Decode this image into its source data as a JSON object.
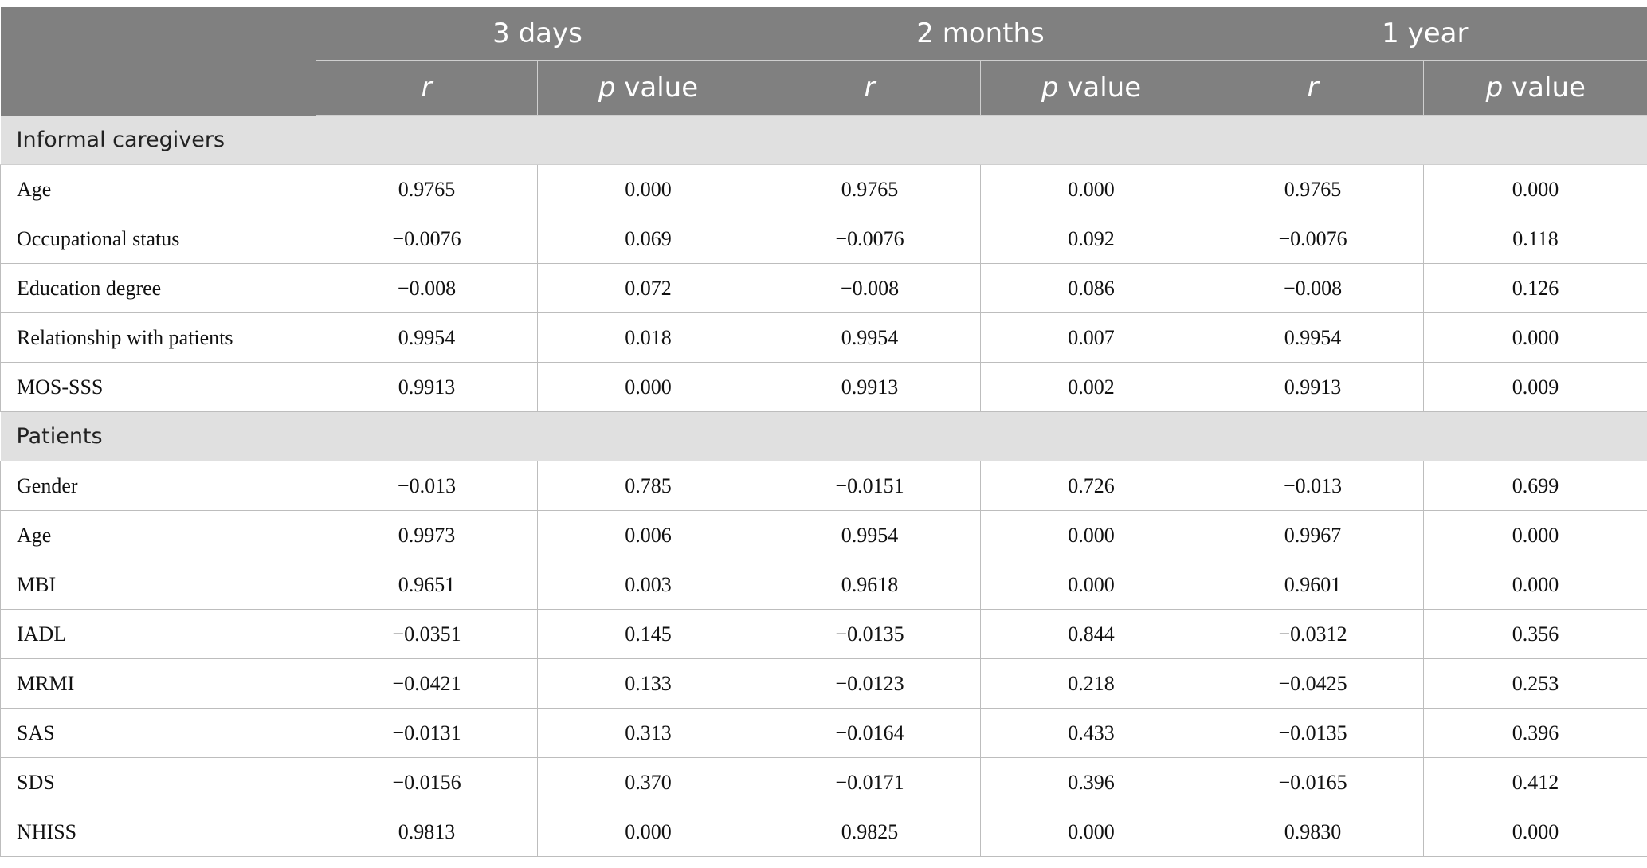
{
  "header": {
    "groups": [
      "3 days",
      "2 months",
      "1 year"
    ],
    "sub": {
      "r": "r",
      "p_italic": "p",
      "p_rest": " value"
    }
  },
  "sections": [
    {
      "title": "Informal caregivers",
      "rows": [
        {
          "label": "Age",
          "values": [
            "0.9765",
            "0.000",
            "0.9765",
            "0.000",
            "0.9765",
            "0.000"
          ]
        },
        {
          "label": "Occupational status",
          "values": [
            "−0.0076",
            "0.069",
            "−0.0076",
            "0.092",
            "−0.0076",
            "0.118"
          ]
        },
        {
          "label": "Education degree",
          "values": [
            "−0.008",
            "0.072",
            "−0.008",
            "0.086",
            "−0.008",
            "0.126"
          ]
        },
        {
          "label": "Relationship with patients",
          "values": [
            "0.9954",
            "0.018",
            "0.9954",
            "0.007",
            "0.9954",
            "0.000"
          ]
        },
        {
          "label": "MOS-SSS",
          "values": [
            "0.9913",
            "0.000",
            "0.9913",
            "0.002",
            "0.9913",
            "0.009"
          ]
        }
      ]
    },
    {
      "title": "Patients",
      "rows": [
        {
          "label": "Gender",
          "values": [
            "−0.013",
            "0.785",
            "−0.0151",
            "0.726",
            "−0.013",
            "0.699"
          ]
        },
        {
          "label": "Age",
          "values": [
            "0.9973",
            "0.006",
            "0.9954",
            "0.000",
            "0.9967",
            "0.000"
          ]
        },
        {
          "label": "MBI",
          "values": [
            "0.9651",
            "0.003",
            "0.9618",
            "0.000",
            "0.9601",
            "0.000"
          ]
        },
        {
          "label": "IADL",
          "values": [
            "−0.0351",
            "0.145",
            "−0.0135",
            "0.844",
            "−0.0312",
            "0.356"
          ]
        },
        {
          "label": "MRMI",
          "values": [
            "−0.0421",
            "0.133",
            "−0.0123",
            "0.218",
            "−0.0425",
            "0.253"
          ]
        },
        {
          "label": "SAS",
          "values": [
            "−0.0131",
            "0.313",
            "−0.0164",
            "0.433",
            "−0.0135",
            "0.396"
          ]
        },
        {
          "label": "SDS",
          "values": [
            "−0.0156",
            "0.370",
            "−0.0171",
            "0.396",
            "−0.0165",
            "0.412"
          ]
        },
        {
          "label": "NHISS",
          "values": [
            "0.9813",
            "0.000",
            "0.9825",
            "0.000",
            "0.9830",
            "0.000"
          ]
        }
      ]
    }
  ]
}
